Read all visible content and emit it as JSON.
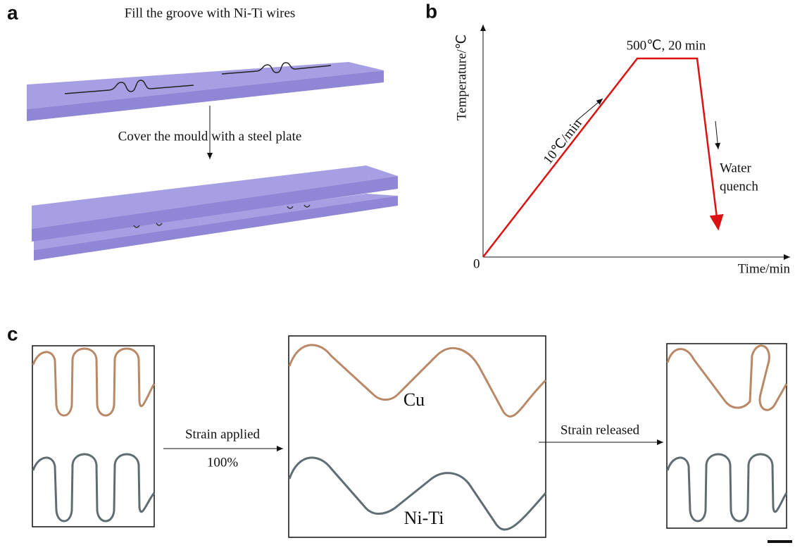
{
  "panels": {
    "a": {
      "label": "a",
      "step1": "Fill the groove with Ni-Ti wires",
      "step2": "Cover the mould with a steel plate"
    },
    "b": {
      "label": "b",
      "y_axis": "Temperature/℃",
      "x_axis": "Time/min",
      "origin": "0",
      "hold": "500℃, 20 min",
      "ramp": "10℃/min",
      "quench": [
        "Water",
        "quench"
      ]
    },
    "c": {
      "label": "c",
      "arrow1": [
        "Strain applied",
        "100%"
      ],
      "arrow2": "Strain released",
      "wire1": "Cu",
      "wire2": "Ni-Ti"
    }
  }
}
